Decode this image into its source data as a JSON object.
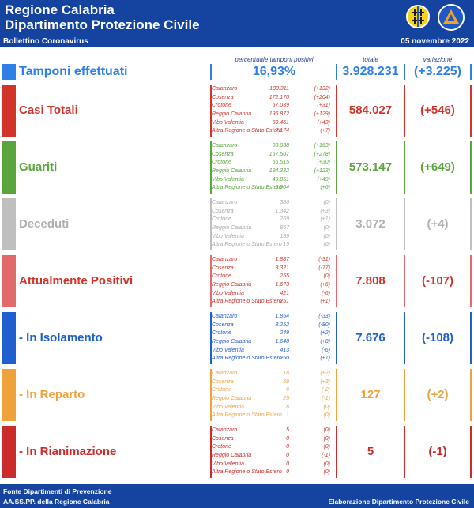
{
  "header": {
    "title_line1": "Regione Calabria",
    "title_line2": "Dipartimento Protezione Civile",
    "subtitle": "Bollettino Coronavirus",
    "date": "05 novembre 2022"
  },
  "columns": {
    "percent": "percentuale tamponi positivi",
    "total": "totale",
    "change": "variazione"
  },
  "tamponi": {
    "label": "Tamponi effettuati",
    "percent": "16,93%",
    "total": "3.928.231",
    "change": "(+3.225)",
    "color": "#2f7fe8"
  },
  "sections": [
    {
      "label": "Casi Totali",
      "color": "#d2342a",
      "title_color": "#d2342a",
      "prov_color": "#d2342a",
      "total": "584.027",
      "change": "(+546)",
      "rows": [
        {
          "name": "Catanzaro",
          "value": "100.311",
          "change": "(+132)"
        },
        {
          "name": "Cosenza",
          "value": "172.170",
          "change": "(+204)"
        },
        {
          "name": "Crotone",
          "value": "57.039",
          "change": "(+31)"
        },
        {
          "name": "Reggio Calabria",
          "value": "196.872",
          "change": "(+129)"
        },
        {
          "name": "Vibo Valentia",
          "value": "50.461",
          "change": "(+43)"
        },
        {
          "name": "Altra Regione o Stato Estero",
          "value": "7.174",
          "change": "(+7)"
        }
      ]
    },
    {
      "label": "Guariti",
      "color": "#5aa53c",
      "title_color": "#5aa53c",
      "prov_color": "#5aa53c",
      "total": "573.147",
      "change": "(+649)",
      "rows": [
        {
          "name": "Catanzaro",
          "value": "98.038",
          "change": "(+163)"
        },
        {
          "name": "Cosenza",
          "value": "167.507",
          "change": "(+278)"
        },
        {
          "name": "Crotone",
          "value": "56.515",
          "change": "(+30)"
        },
        {
          "name": "Reggio Calabria",
          "value": "194.332",
          "change": "(+123)"
        },
        {
          "name": "Vibo Valentia",
          "value": "49.851",
          "change": "(+49)"
        },
        {
          "name": "Altra Regione o Stato Estero",
          "value": "6.904",
          "change": "(+6)"
        }
      ]
    },
    {
      "label": "Deceduti",
      "color": "#bfbfbf",
      "title_color": "#b0b0b0",
      "prov_color": "#a8a8a8",
      "total": "3.072",
      "change": "(+4)",
      "rows": [
        {
          "name": "Catanzaro",
          "value": "386",
          "change": "(0)"
        },
        {
          "name": "Cosenza",
          "value": "1.342",
          "change": "(+3)"
        },
        {
          "name": "Crotone",
          "value": "269",
          "change": "(+1)"
        },
        {
          "name": "Reggio Calabria",
          "value": "867",
          "change": "(0)"
        },
        {
          "name": "Vibo Valentia",
          "value": "189",
          "change": "(0)"
        },
        {
          "name": "Altra Regione o Stato Estero",
          "value": "19",
          "change": "(0)"
        }
      ]
    },
    {
      "label": "Attualmente Positivi",
      "color": "#e36a6a",
      "title_color": "#d2342a",
      "prov_color": "#d2342a",
      "total": "7.808",
      "change": "(-107)",
      "rows": [
        {
          "name": "Catanzaro",
          "value": "1.887",
          "change": "(-31)"
        },
        {
          "name": "Cosenza",
          "value": "3.321",
          "change": "(-77)"
        },
        {
          "name": "Crotone",
          "value": "255",
          "change": "(0)"
        },
        {
          "name": "Reggio Calabria",
          "value": "1.673",
          "change": "(+6)"
        },
        {
          "name": "Vibo Valentia",
          "value": "421",
          "change": "(-6)"
        },
        {
          "name": "Altra Regione o Stato Estero",
          "value": "251",
          "change": "(+1)"
        }
      ]
    },
    {
      "label": " - In Isolamento",
      "color": "#1f5fd0",
      "title_color": "#1f5fd0",
      "prov_color": "#1f5fd0",
      "total": "7.676",
      "change": "(-108)",
      "rows": [
        {
          "name": "Catanzaro",
          "value": "1.864",
          "change": "(-33)"
        },
        {
          "name": "Cosenza",
          "value": "3.252",
          "change": "(-80)"
        },
        {
          "name": "Crotone",
          "value": "249",
          "change": "(+2)"
        },
        {
          "name": "Reggio Calabria",
          "value": "1.648",
          "change": "(+8)"
        },
        {
          "name": "Vibo Valentia",
          "value": "413",
          "change": "(-6)"
        },
        {
          "name": "Altra Regione o Stato Estero",
          "value": "250",
          "change": "(+1)"
        }
      ]
    },
    {
      "label": " - In Reparto",
      "color": "#f0a23a",
      "title_color": "#f0a23a",
      "prov_color": "#f0a23a",
      "total": "127",
      "change": "(+2)",
      "rows": [
        {
          "name": "Catanzaro",
          "value": "18",
          "change": "(+2)"
        },
        {
          "name": "Cosenza",
          "value": "69",
          "change": "(+3)"
        },
        {
          "name": "Crotone",
          "value": "6",
          "change": "(-2)"
        },
        {
          "name": "Reggio Calabria",
          "value": "25",
          "change": "(-1)"
        },
        {
          "name": "Vibo Valentia",
          "value": "8",
          "change": "(0)"
        },
        {
          "name": "Altra Regione o Stato Estero",
          "value": "1",
          "change": "(0)"
        }
      ]
    },
    {
      "label": " - In Rianimazione",
      "color": "#cc2b2b",
      "title_color": "#cc2b2b",
      "prov_color": "#cc2b2b",
      "total": "5",
      "change": "(-1)",
      "rows": [
        {
          "name": "Catanzaro",
          "value": "5",
          "change": "(0)"
        },
        {
          "name": "Cosenza",
          "value": "0",
          "change": "(0)"
        },
        {
          "name": "Crotone",
          "value": "0",
          "change": "(0)"
        },
        {
          "name": "Reggio Calabria",
          "value": "0",
          "change": "(-1)"
        },
        {
          "name": "Vibo Valentia",
          "value": "0",
          "change": "(0)"
        },
        {
          "name": "Altra Regione o Stato Estero",
          "value": "0",
          "change": "(0)"
        }
      ]
    }
  ],
  "footer": {
    "source_line1": "Fonte Dipartimenti di Prevenzione",
    "source_line2": "AA.SS.PP.  della Regione Calabria",
    "credit": "Elaborazione Dipartimento Protezione Civile"
  }
}
